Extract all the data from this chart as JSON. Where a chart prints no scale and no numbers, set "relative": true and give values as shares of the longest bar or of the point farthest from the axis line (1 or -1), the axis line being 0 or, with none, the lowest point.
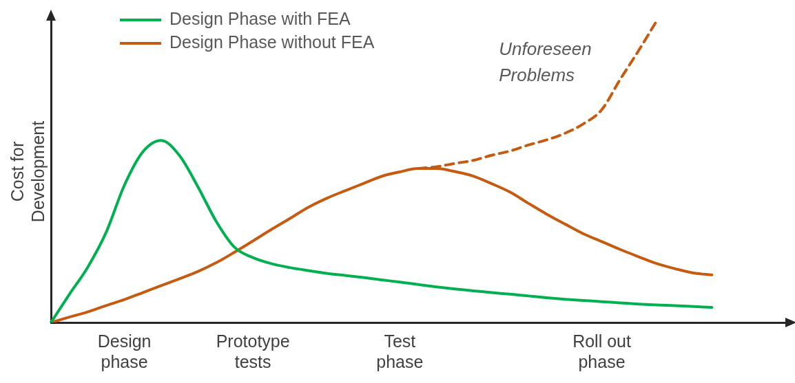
{
  "chart_data": {
    "type": "line",
    "relative": true,
    "ylabel": "Cost for\nDevelopment",
    "categories": [
      null,
      null,
      null,
      null,
      "Design\nphase",
      null,
      null,
      null,
      null,
      null,
      null,
      "Prototype\ntests",
      null,
      null,
      null,
      null,
      null,
      null,
      null,
      "Test\nphase",
      null,
      null,
      null,
      null,
      null,
      null,
      null,
      null,
      null,
      null,
      "Roll out\nphase",
      null,
      null,
      null,
      null,
      null,
      null,
      null,
      null,
      null,
      null
    ],
    "grid": false,
    "legend": "top left",
    "marker": "none",
    "annotations": [
      "Unforeseen\nProblems"
    ],
    "series": [
      {
        "name": "Design Phase with FEA",
        "color": "#00b050",
        "line_style": "solid",
        "values": [
          0,
          0.093,
          0.183,
          0.298,
          0.455,
          0.565,
          0.603,
          0.553,
          0.45,
          0.335,
          0.249,
          0.215,
          0.195,
          0.182,
          0.172,
          0.163,
          0.156,
          0.149,
          0.141,
          0.134,
          0.126,
          0.118,
          0.111,
          0.105,
          0.099,
          0.094,
          0.088,
          0.082,
          0.077,
          0.073,
          0.069,
          0.065,
          0.061,
          0.058,
          0.056,
          0.053,
          0.05,
          null,
          null,
          null,
          null
        ]
      },
      {
        "name": "Design Phase without FEA",
        "color": "#c55a11",
        "line_style": "solid",
        "values": [
          0,
          0.018,
          0.035,
          0.056,
          0.076,
          0.099,
          0.122,
          0.145,
          0.169,
          0.198,
          0.233,
          0.27,
          0.308,
          0.344,
          0.381,
          0.411,
          0.436,
          0.46,
          0.484,
          0.499,
          0.51,
          0.51,
          0.5,
          0.485,
          0.46,
          0.432,
          0.395,
          0.359,
          0.326,
          0.294,
          0.268,
          0.242,
          0.218,
          0.195,
          0.178,
          0.164,
          0.158,
          null,
          null,
          null,
          null
        ]
      },
      {
        "color": "#c55a11",
        "line_style": "dashed",
        "values": [
          null,
          null,
          null,
          null,
          null,
          null,
          null,
          null,
          null,
          null,
          null,
          null,
          null,
          null,
          null,
          null,
          null,
          null,
          null,
          null,
          0.51,
          0.516,
          0.527,
          0.537,
          0.554,
          0.568,
          0.588,
          0.605,
          0.627,
          0.658,
          0.705,
          0.805,
          0.9,
          1,
          null,
          null,
          null,
          null,
          null,
          null,
          null
        ]
      }
    ]
  }
}
